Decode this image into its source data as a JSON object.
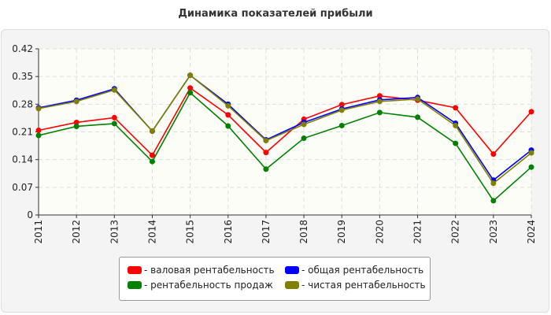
{
  "title": "Динамика показателей прибыли",
  "chart_data": {
    "type": "line",
    "title": "Динамика показателей прибыли",
    "categories": [
      "2011",
      "2012",
      "2013",
      "2014",
      "2015",
      "2016",
      "2017",
      "2018",
      "2019",
      "2020",
      "2021",
      "2022",
      "2023",
      "2024"
    ],
    "ylim": [
      0,
      0.42
    ],
    "yticks": [
      "0",
      "0.07",
      "0.14",
      "0.21",
      "0.28",
      "0.35",
      "0.42"
    ],
    "grid": true,
    "legend_position": "bottom",
    "series": [
      {
        "name": "- валовая рентабельность",
        "color": "#ff0000",
        "values": [
          0.214,
          0.234,
          0.246,
          0.151,
          0.321,
          0.253,
          0.158,
          0.242,
          0.279,
          0.301,
          0.29,
          0.271,
          0.154,
          0.261
        ]
      },
      {
        "name": "- общая рентабельность",
        "color": "#0000ff",
        "values": [
          0.271,
          0.29,
          0.319,
          0.212,
          0.353,
          0.28,
          0.19,
          0.234,
          0.268,
          0.291,
          0.297,
          0.232,
          0.088,
          0.164
        ]
      },
      {
        "name": "- рентабельность продаж",
        "color": "#008000",
        "values": [
          0.201,
          0.224,
          0.231,
          0.135,
          0.309,
          0.225,
          0.116,
          0.194,
          0.226,
          0.259,
          0.247,
          0.181,
          0.036,
          0.121
        ]
      },
      {
        "name": "- чистая рентабельность",
        "color": "#808000",
        "values": [
          0.269,
          0.287,
          0.316,
          0.212,
          0.353,
          0.276,
          0.188,
          0.229,
          0.265,
          0.287,
          0.293,
          0.226,
          0.08,
          0.157
        ]
      }
    ]
  }
}
